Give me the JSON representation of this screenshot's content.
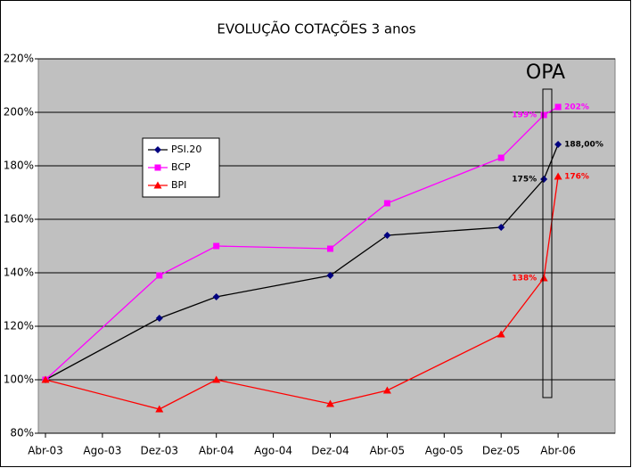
{
  "chart_data": {
    "type": "line",
    "title": "EVOLUÇÃO COTAÇÕES 3 anos",
    "annotation": "OPA",
    "x": [
      0,
      8,
      12,
      20,
      24,
      32,
      35,
      36
    ],
    "xlim": [
      -0.5,
      40
    ],
    "xticks": [
      {
        "value": 0,
        "label": "Abr-03"
      },
      {
        "value": 4,
        "label": "Ago-03"
      },
      {
        "value": 8,
        "label": "Dez-03"
      },
      {
        "value": 12,
        "label": "Abr-04"
      },
      {
        "value": 16,
        "label": "Ago-04"
      },
      {
        "value": 20,
        "label": "Dez-04"
      },
      {
        "value": 24,
        "label": "Abr-05"
      },
      {
        "value": 28,
        "label": "Ago-05"
      },
      {
        "value": 32,
        "label": "Dez-05"
      },
      {
        "value": 36,
        "label": "Abr-06"
      }
    ],
    "ylim": [
      80,
      220
    ],
    "yticks": [
      {
        "value": 80,
        "label": "80%"
      },
      {
        "value": 100,
        "label": "100%"
      },
      {
        "value": 120,
        "label": "120%"
      },
      {
        "value": 140,
        "label": "140%"
      },
      {
        "value": 160,
        "label": "160%"
      },
      {
        "value": 180,
        "label": "180%"
      },
      {
        "value": 200,
        "label": "200%"
      },
      {
        "value": 220,
        "label": "220%"
      }
    ],
    "grid": true,
    "legend": "left",
    "series": [
      {
        "name": "PSI.20",
        "color": "#000080",
        "marker": "diamond",
        "values": [
          100,
          123,
          131,
          139,
          154,
          157,
          175,
          188
        ],
        "value_labels": [
          null,
          null,
          null,
          null,
          null,
          null,
          "175%",
          "188,00%"
        ]
      },
      {
        "name": "BCP",
        "color": "#ff00ff",
        "marker": "square",
        "values": [
          100,
          139,
          150,
          149,
          166,
          183,
          199,
          202
        ],
        "value_labels": [
          null,
          null,
          null,
          null,
          null,
          null,
          "199%",
          "202%"
        ]
      },
      {
        "name": "BPI",
        "color": "#ff0000",
        "marker": "triangle",
        "values": [
          100,
          89,
          100,
          91,
          96,
          117,
          138,
          176
        ],
        "value_labels": [
          null,
          null,
          null,
          null,
          null,
          null,
          "138%",
          "176%"
        ]
      }
    ]
  }
}
